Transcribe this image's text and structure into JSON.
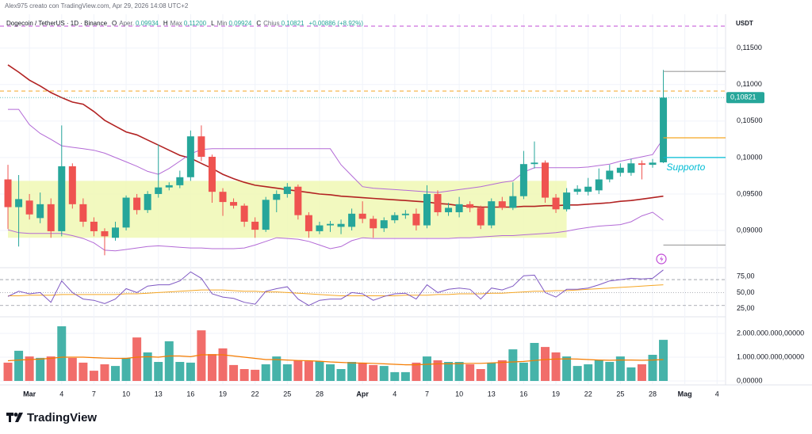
{
  "header": {
    "attribution": "Alex975 creato con TradingView.com, Apr 29, 2026 14:08 UTC+2",
    "currency": "USDT",
    "brand": "TradingView"
  },
  "chart_data": {
    "type": "candlestick",
    "title": "Dogecoin / TetherUS · 1D · Binance",
    "legend": [
      {
        "key": "O",
        "label": "Aper.",
        "value": "0,09934"
      },
      {
        "key": "H",
        "label": "Max",
        "value": "0,11200"
      },
      {
        "key": "L",
        "label": "Min",
        "value": "0,09924"
      },
      {
        "key": "C",
        "label": "Chius",
        "value": "0,10821"
      }
    ],
    "change": "+0,00886 (+8,92%)",
    "annotation": "Supporto",
    "xlim": [
      -0.74,
      66.79
    ],
    "xticks": [
      {
        "value": 2,
        "label": "Mar"
      },
      {
        "value": 5,
        "label": "4"
      },
      {
        "value": 8,
        "label": "7"
      },
      {
        "value": 11,
        "label": "10"
      },
      {
        "value": 14,
        "label": "13"
      },
      {
        "value": 17,
        "label": "16"
      },
      {
        "value": 20,
        "label": "19"
      },
      {
        "value": 23,
        "label": "22"
      },
      {
        "value": 26,
        "label": "25"
      },
      {
        "value": 29,
        "label": "28"
      },
      {
        "value": 33,
        "label": "Apr"
      },
      {
        "value": 36,
        "label": "4"
      },
      {
        "value": 39,
        "label": "7"
      },
      {
        "value": 42,
        "label": "10"
      },
      {
        "value": 45,
        "label": "13"
      },
      {
        "value": 48,
        "label": "16"
      },
      {
        "value": 51,
        "label": "19"
      },
      {
        "value": 54,
        "label": "22"
      },
      {
        "value": 57,
        "label": "25"
      },
      {
        "value": 60,
        "label": "28"
      },
      {
        "value": 63,
        "label": "Mag"
      },
      {
        "value": 66,
        "label": "4"
      }
    ],
    "ylim": [
      0.0849,
      0.1192
    ],
    "yticks": [
      {
        "value": 0.09,
        "label": "0,09000"
      },
      {
        "value": 0.095,
        "label": "0,09500"
      },
      {
        "value": 0.1,
        "label": "0,10000"
      },
      {
        "value": 0.105,
        "label": "0,10500"
      },
      {
        "value": 0.11,
        "label": "0,11000"
      },
      {
        "value": 0.115,
        "label": "0,11500"
      }
    ],
    "grid": true,
    "up_color": "#26a69a",
    "down_color": "#ef5350",
    "open": [
      0.097,
      0.0932,
      0.0941,
      0.0917,
      0.0936,
      0.0899,
      0.0988,
      0.0936,
      0.0912,
      0.0899,
      0.089,
      0.0904,
      0.0945,
      0.0928,
      0.095,
      0.0959,
      0.0962,
      0.0973,
      0.1029,
      0.1001,
      0.0953,
      0.0939,
      0.0934,
      0.0912,
      0.0901,
      0.0942,
      0.095,
      0.096,
      0.0921,
      0.0899,
      0.0907,
      0.0905,
      0.0905,
      0.0923,
      0.0916,
      0.0903,
      0.0914,
      0.0921,
      0.0923,
      0.0907,
      0.095,
      0.0925,
      0.0925,
      0.0936,
      0.0931,
      0.0907,
      0.094,
      0.0931,
      0.0947,
      0.0991,
      0.0993,
      0.0945,
      0.0929,
      0.0953,
      0.0953,
      0.0955,
      0.097,
      0.0979,
      0.0979,
      0.0992,
      0.099,
      0.09934
    ],
    "high": [
      0.099,
      0.0976,
      0.095,
      0.0952,
      0.0944,
      0.1044,
      0.0992,
      0.0944,
      0.0918,
      0.0903,
      0.0912,
      0.0948,
      0.095,
      0.0954,
      0.1018,
      0.0966,
      0.0982,
      0.1037,
      0.1044,
      0.1004,
      0.0958,
      0.0944,
      0.0937,
      0.0918,
      0.0946,
      0.0955,
      0.0965,
      0.0963,
      0.0925,
      0.0912,
      0.0913,
      0.0915,
      0.093,
      0.094,
      0.092,
      0.0918,
      0.0925,
      0.0928,
      0.093,
      0.0962,
      0.0955,
      0.0938,
      0.0946,
      0.094,
      0.0934,
      0.0944,
      0.0946,
      0.0966,
      0.1009,
      0.1022,
      0.0996,
      0.095,
      0.0958,
      0.0962,
      0.0972,
      0.0985,
      0.099,
      0.0992,
      0.0998,
      0.0996,
      0.0998,
      0.112
    ],
    "low": [
      0.0902,
      0.0878,
      0.0915,
      0.091,
      0.089,
      0.0892,
      0.093,
      0.0905,
      0.0892,
      0.0866,
      0.0886,
      0.09,
      0.0922,
      0.0924,
      0.0945,
      0.0955,
      0.0958,
      0.0968,
      0.0995,
      0.0938,
      0.092,
      0.093,
      0.0905,
      0.089,
      0.0898,
      0.0925,
      0.0945,
      0.0915,
      0.089,
      0.0895,
      0.0898,
      0.0895,
      0.09,
      0.091,
      0.089,
      0.0898,
      0.091,
      0.0916,
      0.09,
      0.0903,
      0.092,
      0.092,
      0.0918,
      0.0925,
      0.0902,
      0.0903,
      0.0928,
      0.0928,
      0.0943,
      0.0985,
      0.0938,
      0.0924,
      0.0926,
      0.0949,
      0.0948,
      0.095,
      0.0966,
      0.0974,
      0.0975,
      0.097,
      0.0986,
      0.09924
    ],
    "close": [
      0.0932,
      0.0943,
      0.0922,
      0.0936,
      0.0899,
      0.0988,
      0.0936,
      0.0912,
      0.0899,
      0.0892,
      0.0904,
      0.0945,
      0.0928,
      0.095,
      0.0959,
      0.0962,
      0.0973,
      0.1029,
      0.1001,
      0.0953,
      0.0939,
      0.0934,
      0.0912,
      0.0901,
      0.0942,
      0.095,
      0.096,
      0.0921,
      0.0899,
      0.0907,
      0.0909,
      0.0909,
      0.0923,
      0.0916,
      0.0903,
      0.0914,
      0.0921,
      0.0923,
      0.0907,
      0.095,
      0.0925,
      0.0931,
      0.0936,
      0.0931,
      0.0907,
      0.094,
      0.0931,
      0.0947,
      0.0991,
      0.0993,
      0.0945,
      0.0929,
      0.0952,
      0.0957,
      0.096,
      0.097,
      0.0982,
      0.0986,
      0.0992,
      0.099,
      0.0993,
      0.10821
    ],
    "last_price": {
      "value": 0.10821,
      "label": "0,10821"
    },
    "series": [
      {
        "color": "#b22222",
        "values": [
          0.1127,
          0.1117,
          0.1106,
          0.1098,
          0.1089,
          0.1082,
          0.1076,
          0.1073,
          0.1063,
          0.1051,
          0.1043,
          0.1035,
          0.1031,
          0.1024,
          0.1017,
          0.101,
          0.1003,
          0.0999,
          0.0992,
          0.0985,
          0.0977,
          0.0971,
          0.0966,
          0.0962,
          0.096,
          0.0958,
          0.0956,
          0.0954,
          0.0952,
          0.095,
          0.0949,
          0.0947,
          0.0946,
          0.0945,
          0.0944,
          0.0943,
          0.0942,
          0.0941,
          0.094,
          0.0939,
          0.0937,
          0.0936,
          0.0934,
          0.0933,
          0.0932,
          0.0932,
          0.0932,
          0.0932,
          0.0933,
          0.0933,
          0.0934,
          0.0934,
          0.0935,
          0.0935,
          0.0936,
          0.0937,
          0.0938,
          0.094,
          0.0941,
          0.0943,
          0.0945,
          0.0947
        ]
      },
      {
        "color": "#b36ad6",
        "values": [
          0.1066,
          0.1066,
          0.1045,
          0.1033,
          0.1025,
          0.1016,
          0.1014,
          0.1012,
          0.101,
          0.1006,
          0.1,
          0.0994,
          0.0988,
          0.0981,
          0.0977,
          0.0985,
          0.0995,
          0.1005,
          0.1011,
          0.1012,
          0.1012,
          0.1012,
          0.1012,
          0.1012,
          0.1012,
          0.1012,
          0.1012,
          0.1012,
          0.1012,
          0.1012,
          0.1012,
          0.099,
          0.0975,
          0.096,
          0.0958,
          0.0957,
          0.0956,
          0.0955,
          0.0954,
          0.0953,
          0.0952,
          0.0954,
          0.0956,
          0.0958,
          0.096,
          0.0963,
          0.0966,
          0.0968,
          0.098,
          0.0986,
          0.0986,
          0.0986,
          0.0986,
          0.0986,
          0.0987,
          0.0989,
          0.0991,
          0.0995,
          0.0998,
          0.1001,
          0.1004,
          0.1026
        ]
      },
      {
        "color": "#b36ad6",
        "values": [
          0.0901,
          0.0897,
          0.0896,
          0.0896,
          0.0896,
          0.0896,
          0.0893,
          0.0889,
          0.0883,
          0.0873,
          0.0872,
          0.0874,
          0.0876,
          0.0878,
          0.0879,
          0.0878,
          0.0877,
          0.0876,
          0.0876,
          0.0875,
          0.0875,
          0.0875,
          0.0876,
          0.088,
          0.0885,
          0.089,
          0.0889,
          0.0888,
          0.0885,
          0.088,
          0.0875,
          0.0878,
          0.0886,
          0.089,
          0.0889,
          0.0889,
          0.0889,
          0.0889,
          0.0889,
          0.0889,
          0.0889,
          0.0889,
          0.089,
          0.089,
          0.0891,
          0.0892,
          0.0893,
          0.0893,
          0.0894,
          0.0895,
          0.0896,
          0.0897,
          0.0899,
          0.0902,
          0.0904,
          0.0906,
          0.0907,
          0.0908,
          0.0912,
          0.092,
          0.0925,
          0.0914
        ]
      }
    ],
    "zone": {
      "x_from": 0,
      "x_to": 52,
      "top": 0.0968,
      "bottom": 0.089,
      "color": "#f0f8b4"
    },
    "drawings": [
      {
        "value": 0.118,
        "color": "#c04bd6",
        "style": "dashed"
      },
      {
        "value": 0.1091,
        "color": "#f5a623",
        "style": "dashed"
      },
      {
        "value": 0.1118,
        "color": "#9e9e9e",
        "x_from": 61
      },
      {
        "value": 0.1027,
        "color": "#f5a623",
        "x_from": 61
      },
      {
        "value": 0.1,
        "color": "#00bcd4",
        "x_from": 61
      },
      {
        "value": 0.088,
        "color": "#9e9e9e",
        "x_from": 61
      }
    ],
    "rsi": {
      "ylim": [
        15,
        86
      ],
      "yticks": [
        {
          "value": 25,
          "label": "25,00"
        },
        {
          "value": 50,
          "label": "50,00"
        },
        {
          "value": 75,
          "label": "75,00"
        }
      ],
      "levels": [
        30,
        50,
        70
      ],
      "color": "#7e57c2",
      "ma_color": "#f5a623",
      "values": [
        44,
        52,
        48,
        50,
        35,
        68,
        50,
        40,
        38,
        33,
        40,
        56,
        50,
        60,
        62,
        62,
        68,
        82,
        72,
        48,
        43,
        41,
        35,
        32,
        52,
        56,
        59,
        40,
        30,
        38,
        40,
        40,
        50,
        48,
        38,
        44,
        48,
        49,
        40,
        62,
        50,
        55,
        57,
        55,
        40,
        57,
        54,
        60,
        76,
        77,
        50,
        43,
        55,
        55,
        57,
        62,
        68,
        70,
        72,
        71,
        72,
        85
      ],
      "ma": [
        45,
        45,
        46,
        46,
        46,
        47,
        47,
        47,
        47,
        47,
        47,
        48,
        48,
        49,
        50,
        51,
        52,
        53,
        54,
        54,
        54,
        53,
        52,
        52,
        51,
        51,
        50,
        49,
        48,
        47,
        46,
        45,
        45,
        45,
        45,
        45,
        45,
        46,
        46,
        46,
        47,
        47,
        48,
        48,
        48,
        49,
        49,
        50,
        51,
        52,
        52,
        53,
        53,
        54,
        55,
        56,
        57,
        58,
        59,
        60,
        61,
        62
      ]
    },
    "volume": {
      "ylim": [
        0,
        2600000000.0
      ],
      "yticks": [
        {
          "value": 0,
          "label": "0,00000"
        },
        {
          "value": 1000000000.0,
          "label": "1.000.000.000,00000"
        },
        {
          "value": 2000000000.0,
          "label": "2.000.000.000,00000"
        }
      ],
      "ma_color": "#f57c00",
      "values": [
        770000000.0,
        1270000000.0,
        1030000000.0,
        970000000.0,
        1030000000.0,
        2300000000.0,
        970000000.0,
        770000000.0,
        430000000.0,
        700000000.0,
        630000000.0,
        970000000.0,
        1830000000.0,
        1200000000.0,
        800000000.0,
        1670000000.0,
        800000000.0,
        770000000.0,
        2130000000.0,
        1130000000.0,
        1370000000.0,
        670000000.0,
        500000000.0,
        470000000.0,
        700000000.0,
        1030000000.0,
        700000000.0,
        870000000.0,
        830000000.0,
        830000000.0,
        700000000.0,
        500000000.0,
        800000000.0,
        770000000.0,
        670000000.0,
        630000000.0,
        370000000.0,
        370000000.0,
        770000000.0,
        1030000000.0,
        870000000.0,
        800000000.0,
        800000000.0,
        700000000.0,
        500000000.0,
        770000000.0,
        870000000.0,
        1330000000.0,
        770000000.0,
        1600000000.0,
        1430000000.0,
        1200000000.0,
        1030000000.0,
        630000000.0,
        700000000.0,
        870000000.0,
        800000000.0,
        1030000000.0,
        570000000.0,
        700000000.0,
        1100000000.0,
        1730000000.0
      ],
      "ma": [
        850000000.0,
        880000000.0,
        900000000.0,
        920000000.0,
        950000000.0,
        1000000000.0,
        1000000000.0,
        1000000000.0,
        980000000.0,
        960000000.0,
        950000000.0,
        950000000.0,
        1000000000.0,
        1020000000.0,
        1000000000.0,
        1050000000.0,
        1050000000.0,
        1020000000.0,
        1100000000.0,
        1100000000.0,
        1100000000.0,
        1050000000.0,
        1000000000.0,
        950000000.0,
        900000000.0,
        900000000.0,
        880000000.0,
        860000000.0,
        850000000.0,
        830000000.0,
        800000000.0,
        780000000.0,
        760000000.0,
        750000000.0,
        740000000.0,
        720000000.0,
        700000000.0,
        680000000.0,
        680000000.0,
        700000000.0,
        720000000.0,
        720000000.0,
        730000000.0,
        740000000.0,
        740000000.0,
        760000000.0,
        780000000.0,
        800000000.0,
        820000000.0,
        860000000.0,
        900000000.0,
        920000000.0,
        930000000.0,
        920000000.0,
        900000000.0,
        880000000.0,
        870000000.0,
        880000000.0,
        880000000.0,
        870000000.0,
        880000000.0,
        900000000.0
      ]
    }
  }
}
